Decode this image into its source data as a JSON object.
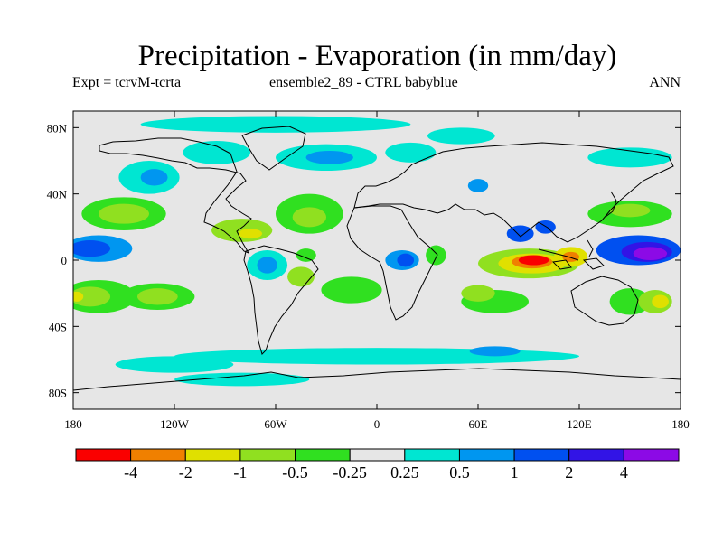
{
  "title": "Precipitation - Evaporation (in mm/day)",
  "subtitle_left": "Expt = tcrvM-tcrta",
  "subtitle_center": "ensemble2_89 - CTRL babyblue",
  "subtitle_right": "ANN",
  "chart_data": {
    "type": "heatmap",
    "title": "Precipitation - Evaporation (in mm/day)",
    "xlabel": "",
    "ylabel": "",
    "xlim": [
      -180,
      180
    ],
    "ylim": [
      -90,
      90
    ],
    "x_ticks": [
      {
        "value": -180,
        "label": "180"
      },
      {
        "value": -120,
        "label": "120W"
      },
      {
        "value": -60,
        "label": "60W"
      },
      {
        "value": 0,
        "label": "0"
      },
      {
        "value": 60,
        "label": "60E"
      },
      {
        "value": 120,
        "label": "120E"
      },
      {
        "value": 180,
        "label": "180"
      }
    ],
    "y_ticks": [
      {
        "value": 80,
        "label": "80N"
      },
      {
        "value": 40,
        "label": "40N"
      },
      {
        "value": 0,
        "label": "0"
      },
      {
        "value": -40,
        "label": "40S"
      },
      {
        "value": -80,
        "label": "80S"
      }
    ],
    "colorbar": {
      "colors": [
        "#fa0000",
        "#f08000",
        "#e0e000",
        "#90e020",
        "#30e020",
        "#e6e6e6",
        "#00e6d2",
        "#0096f0",
        "#0050f0",
        "#3214e6",
        "#8c0ae6"
      ],
      "levels": [
        "-4",
        "-2",
        "-1",
        "-0.5",
        "-0.25",
        "0.25",
        "0.5",
        "1",
        "2",
        "4"
      ],
      "level_values": [
        -4,
        -2,
        -1,
        -0.5,
        -0.25,
        0.25,
        0.5,
        1,
        2,
        4
      ]
    },
    "background_class": 5,
    "regions": [
      {
        "name": "arctic-band",
        "c": 6,
        "lon": -60,
        "lat": 82,
        "rlon": 80,
        "rlat": 5
      },
      {
        "name": "canada-arctic",
        "c": 6,
        "lon": -95,
        "lat": 65,
        "rlon": 20,
        "rlat": 7
      },
      {
        "name": "n-atlantic-sub",
        "c": 6,
        "lon": -30,
        "lat": 62,
        "rlon": 30,
        "rlat": 8
      },
      {
        "name": "n-atlantic-sub-b",
        "c": 7,
        "lon": -28,
        "lat": 62,
        "rlon": 14,
        "rlat": 4
      },
      {
        "name": "europe-north",
        "c": 6,
        "lon": 20,
        "lat": 65,
        "rlon": 15,
        "rlat": 6
      },
      {
        "name": "barents",
        "c": 6,
        "lon": 50,
        "lat": 75,
        "rlon": 20,
        "rlat": 5
      },
      {
        "name": "n-pacific-east",
        "c": 6,
        "lon": -135,
        "lat": 50,
        "rlon": 18,
        "rlat": 10
      },
      {
        "name": "n-pacific-east-b",
        "c": 7,
        "lon": -132,
        "lat": 50,
        "rlon": 8,
        "rlat": 5
      },
      {
        "name": "nw-pacific",
        "c": 6,
        "lon": 150,
        "lat": 62,
        "rlon": 25,
        "rlat": 6
      },
      {
        "name": "e-pacific-itcz",
        "c": 7,
        "lon": -165,
        "lat": 7,
        "rlon": 20,
        "rlat": 8
      },
      {
        "name": "e-pacific-itcz-b",
        "c": 8,
        "lon": -170,
        "lat": 7,
        "rlon": 12,
        "rlat": 5
      },
      {
        "name": "n-pacific-subtrop",
        "c": 4,
        "lon": -150,
        "lat": 28,
        "rlon": 25,
        "rlat": 10
      },
      {
        "name": "n-pacific-subtrop-b",
        "c": 3,
        "lon": -150,
        "lat": 28,
        "rlon": 15,
        "rlat": 6
      },
      {
        "name": "mexico-caribbean",
        "c": 3,
        "lon": -80,
        "lat": 18,
        "rlon": 18,
        "rlat": 7
      },
      {
        "name": "caribbean-core",
        "c": 2,
        "lon": -75,
        "lat": 16,
        "rlon": 7,
        "rlat": 3
      },
      {
        "name": "n-atlantic-subtrop",
        "c": 4,
        "lon": -40,
        "lat": 28,
        "rlon": 20,
        "rlat": 12
      },
      {
        "name": "n-atlantic-subtrop-b",
        "c": 3,
        "lon": -40,
        "lat": 26,
        "rlon": 10,
        "rlat": 6
      },
      {
        "name": "amazon",
        "c": 6,
        "lon": -65,
        "lat": -3,
        "rlon": 12,
        "rlat": 9
      },
      {
        "name": "amazon-core",
        "c": 7,
        "lon": -65,
        "lat": -3,
        "rlon": 6,
        "rlat": 5
      },
      {
        "name": "brazil-east",
        "c": 3,
        "lon": -45,
        "lat": -10,
        "rlon": 8,
        "rlat": 6
      },
      {
        "name": "brazil-east-b",
        "c": 4,
        "lon": -42,
        "lat": 3,
        "rlon": 6,
        "rlat": 4
      },
      {
        "name": "africa-congo",
        "c": 7,
        "lon": 15,
        "lat": 0,
        "rlon": 10,
        "rlat": 6
      },
      {
        "name": "africa-congo-core",
        "c": 8,
        "lon": 17,
        "lat": 0,
        "rlon": 5,
        "rlat": 4
      },
      {
        "name": "africa-east",
        "c": 4,
        "lon": 35,
        "lat": 3,
        "rlon": 6,
        "rlat": 6
      },
      {
        "name": "s-atlantic-subtrop",
        "c": 4,
        "lon": -15,
        "lat": -18,
        "rlon": 18,
        "rlat": 8
      },
      {
        "name": "s-pacific-east",
        "c": 4,
        "lon": -130,
        "lat": -22,
        "rlon": 22,
        "rlat": 8
      },
      {
        "name": "s-pacific-east-b",
        "c": 3,
        "lon": -130,
        "lat": -22,
        "rlon": 12,
        "rlat": 5
      },
      {
        "name": "w-pacific-sw",
        "c": 4,
        "lon": -165,
        "lat": -22,
        "rlon": 22,
        "rlat": 10
      },
      {
        "name": "w-pacific-sw-b",
        "c": 3,
        "lon": -170,
        "lat": -22,
        "rlon": 12,
        "rlat": 6
      },
      {
        "name": "w-pacific-sw-c",
        "c": 2,
        "lon": -178,
        "lat": -22,
        "rlon": 4,
        "rlat": 3
      },
      {
        "name": "indian-ocean-south",
        "c": 4,
        "lon": 70,
        "lat": -25,
        "rlon": 20,
        "rlat": 7
      },
      {
        "name": "indian-ocean-sw",
        "c": 3,
        "lon": 60,
        "lat": -20,
        "rlon": 10,
        "rlat": 5
      },
      {
        "name": "indian-ocean-eq",
        "c": 3,
        "lon": 90,
        "lat": -2,
        "rlon": 30,
        "rlat": 9
      },
      {
        "name": "indian-ocean-eq-b",
        "c": 2,
        "lon": 92,
        "lat": -2,
        "rlon": 20,
        "rlat": 6
      },
      {
        "name": "indian-ocean-eq-core",
        "c": 1,
        "lon": 92,
        "lat": -1,
        "rlon": 12,
        "rlat": 4
      },
      {
        "name": "indian-ocean-eq-min",
        "c": 0,
        "lon": 93,
        "lat": 0,
        "rlon": 9,
        "rlat": 3
      },
      {
        "name": "maritime-continent",
        "c": 2,
        "lon": 115,
        "lat": 2,
        "rlon": 10,
        "rlat": 6
      },
      {
        "name": "maritime-core",
        "c": 1,
        "lon": 115,
        "lat": 2,
        "rlon": 5,
        "rlat": 3
      },
      {
        "name": "bay-of-bengal",
        "c": 8,
        "lon": 85,
        "lat": 16,
        "rlon": 8,
        "rlat": 5
      },
      {
        "name": "w-pacific-warm",
        "c": 8,
        "lon": 155,
        "lat": 6,
        "rlon": 25,
        "rlat": 9
      },
      {
        "name": "w-pacific-warm-b",
        "c": 9,
        "lon": 160,
        "lat": 5,
        "rlon": 15,
        "rlat": 6
      },
      {
        "name": "w-pacific-warm-core",
        "c": 10,
        "lon": 162,
        "lat": 4,
        "rlon": 10,
        "rlat": 4
      },
      {
        "name": "nw-pacific-subtrop",
        "c": 4,
        "lon": 150,
        "lat": 28,
        "rlon": 25,
        "rlat": 8
      },
      {
        "name": "nw-pacific-subtrop-b",
        "c": 3,
        "lon": 150,
        "lat": 30,
        "rlon": 12,
        "rlat": 4
      },
      {
        "name": "australia-east",
        "c": 4,
        "lon": 150,
        "lat": -25,
        "rlon": 12,
        "rlat": 8
      },
      {
        "name": "sw-pacific",
        "c": 3,
        "lon": 165,
        "lat": -25,
        "rlon": 10,
        "rlat": 7
      },
      {
        "name": "sw-pacific-core",
        "c": 2,
        "lon": 168,
        "lat": -25,
        "rlon": 5,
        "rlat": 4
      },
      {
        "name": "s-ocean-band",
        "c": 6,
        "lon": 0,
        "lat": -58,
        "rlon": 120,
        "rlat": 5
      },
      {
        "name": "s-ocean-sp",
        "c": 6,
        "lon": -120,
        "lat": -63,
        "rlon": 35,
        "rlat": 5
      },
      {
        "name": "s-ocean-indian",
        "c": 7,
        "lon": 70,
        "lat": -55,
        "rlon": 15,
        "rlat": 3
      },
      {
        "name": "antarctic-coast",
        "c": 6,
        "lon": -80,
        "lat": -72,
        "rlon": 40,
        "rlat": 4
      },
      {
        "name": "central-asia",
        "c": 7,
        "lon": 60,
        "lat": 45,
        "rlon": 6,
        "rlat": 4
      },
      {
        "name": "se-asia-north",
        "c": 8,
        "lon": 100,
        "lat": 20,
        "rlon": 6,
        "rlat": 4
      }
    ]
  }
}
